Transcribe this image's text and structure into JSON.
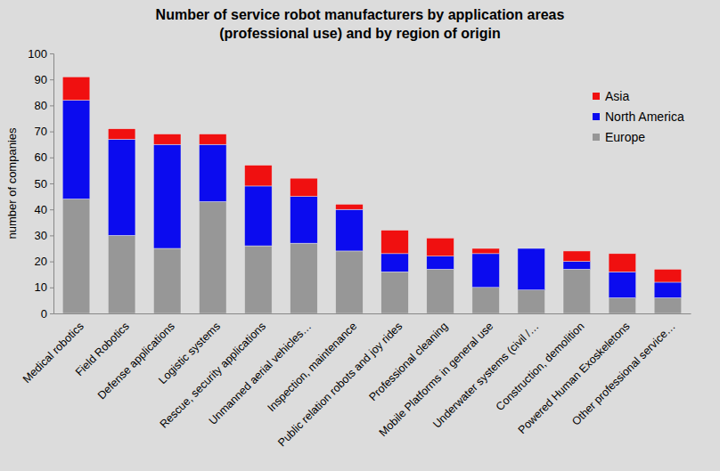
{
  "chart_data": {
    "type": "bar",
    "stacked": true,
    "title": "Number of service robot manufacturers by application areas\n(professional use) and by region of origin",
    "y_label": "number of companies",
    "categories": [
      "Medical robotics",
      "Field Robotics",
      "Defense applications",
      "Logistic systems",
      "Rescue, security applications",
      "Unmanned aerial vehicles…",
      "Inspection, maintenance",
      "Public relation robots and joy rides",
      "Professional cleaning",
      "Mobile Platforms in general use",
      "Underwater systems (civil /…",
      "Construction, demolition",
      "Powered Human Exoskeletons",
      "Other professional service…"
    ],
    "series": [
      {
        "name": "Europe",
        "color": "#979797",
        "values": [
          44,
          30,
          25,
          43,
          26,
          27,
          24,
          16,
          17,
          10,
          9,
          17,
          6,
          6
        ]
      },
      {
        "name": "North America",
        "color": "#0b0bef",
        "values": [
          38,
          37,
          40,
          22,
          23,
          18,
          16,
          7,
          5,
          13,
          16,
          3,
          10,
          6
        ]
      },
      {
        "name": "Asia",
        "color": "#f01010",
        "values": [
          9,
          4,
          4,
          4,
          8,
          7,
          2,
          9,
          7,
          2,
          0,
          4,
          7,
          5
        ]
      }
    ],
    "ylim": [
      0,
      100
    ],
    "yticks": [
      0,
      10,
      20,
      30,
      40,
      50,
      60,
      70,
      80,
      90,
      100
    ],
    "grid": false,
    "legend": "upper right"
  }
}
